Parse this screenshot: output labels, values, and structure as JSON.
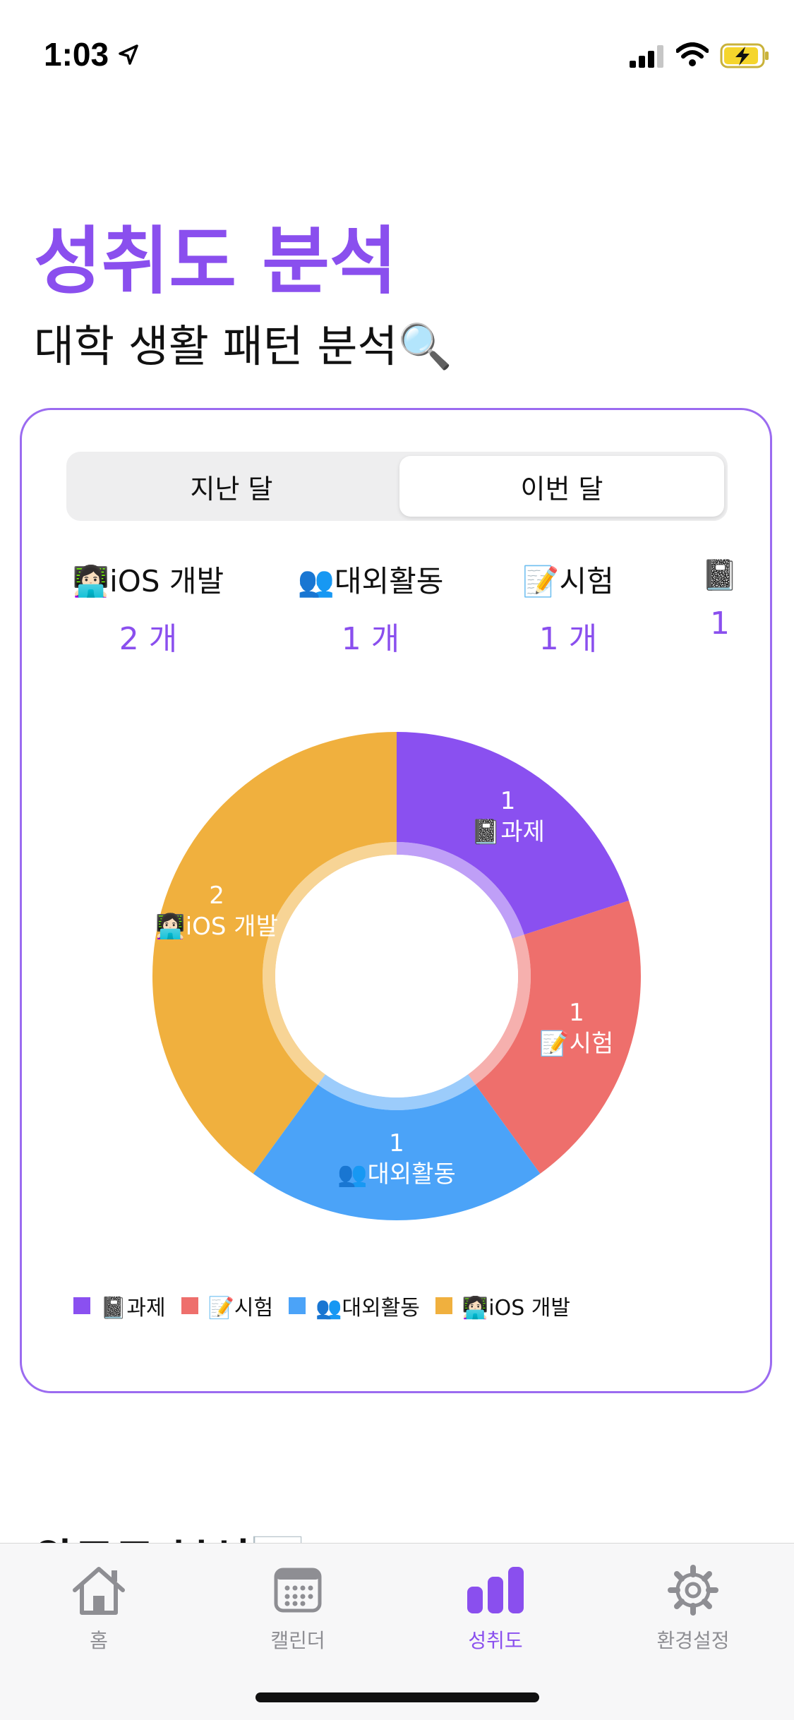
{
  "status": {
    "time": "1:03"
  },
  "header": {
    "title": "성취도 분석",
    "subtitle": "대학 생활 패턴 분석🔍"
  },
  "segment": {
    "options": [
      "지난 달",
      "이번 달"
    ],
    "selected": "이번 달"
  },
  "categories": [
    {
      "label": "👩🏻‍💻iOS 개발",
      "count": "2 개"
    },
    {
      "label": "👥대외활동",
      "count": "1 개"
    },
    {
      "label": "📝시험",
      "count": "1 개"
    },
    {
      "label": "📓",
      "count": "1"
    }
  ],
  "chart_data": {
    "type": "pie",
    "variant": "donut",
    "slices": [
      {
        "name": "📓과제",
        "value": 1,
        "color": "#8A50F0"
      },
      {
        "name": "📝시험",
        "value": 1,
        "color": "#EE6F6C"
      },
      {
        "name": "👥대외활동",
        "value": 1,
        "color": "#4BA3F8"
      },
      {
        "name": "👩🏻‍💻iOS 개발",
        "value": 2,
        "color": "#F0B03E"
      }
    ],
    "legend_position": "bottom-left"
  },
  "section_peek": {
    "title": "완료도 분석📊"
  },
  "tabs": [
    {
      "label": "홈",
      "icon": "home-icon"
    },
    {
      "label": "캘린더",
      "icon": "calendar-icon"
    },
    {
      "label": "성취도",
      "icon": "chart-bar-icon"
    },
    {
      "label": "환경설정",
      "icon": "gear-icon"
    }
  ],
  "colors": {
    "accent": "#8A4FEE",
    "inactive": "#8E8E93"
  }
}
